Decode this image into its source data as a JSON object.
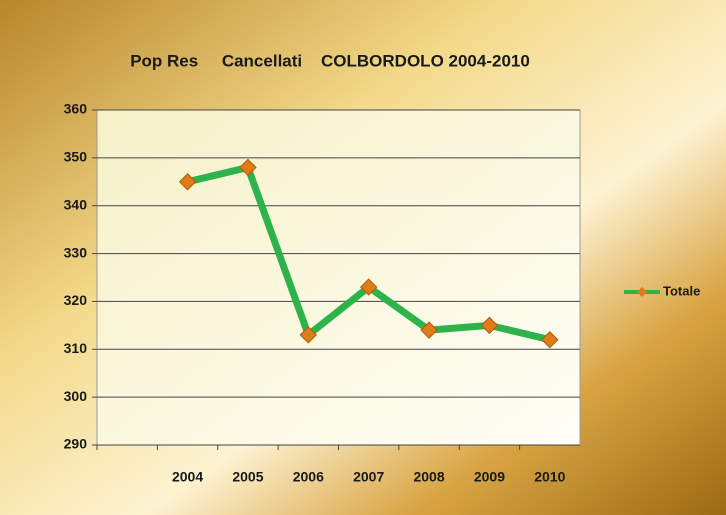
{
  "chart_data": {
    "type": "line",
    "title": "Pop Res     Cancellati    COLBORDOLO 2004-2010",
    "categories": [
      null,
      "2004",
      "2005",
      "2006",
      "2007",
      "2008",
      "2009",
      "2010"
    ],
    "series": [
      {
        "name": "Totale",
        "color": "#2db34a",
        "marker_color": "#e07b1a",
        "values": [
          null,
          345,
          348,
          313,
          323,
          314,
          315,
          312
        ]
      }
    ],
    "ylim": [
      290,
      360
    ],
    "yticks": [
      290,
      300,
      310,
      320,
      330,
      340,
      350,
      360
    ],
    "grid": true,
    "legend": "right"
  }
}
